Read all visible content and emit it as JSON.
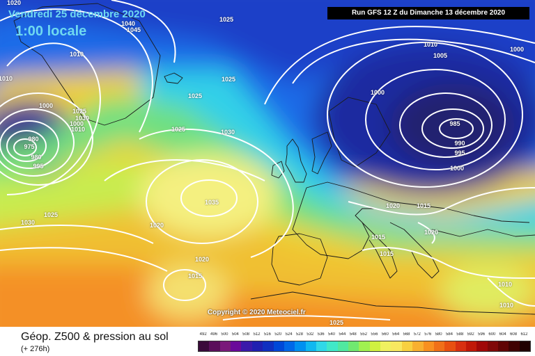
{
  "title": {
    "date": "Vendredi 25 décembre 2020",
    "time": "1:00 locale"
  },
  "run_info": "Run GFS 12 Z du Dimanche 13 décembre 2020",
  "copyright": "Copyright © 2020 Meteociel.fr",
  "footer": {
    "title": "Géop. Z500 & pression au sol",
    "subtitle": "(+ 276h)"
  },
  "scale": {
    "labels": [
      "492",
      "496",
      "500",
      "504",
      "508",
      "512",
      "516",
      "520",
      "524",
      "528",
      "532",
      "536",
      "540",
      "544",
      "548",
      "552",
      "556",
      "560",
      "564",
      "568",
      "572",
      "576",
      "580",
      "584",
      "588",
      "592",
      "596",
      "600",
      "604",
      "608",
      "612"
    ],
    "colors": [
      "#3a0a3a",
      "#5a0f5a",
      "#7a1a7a",
      "#6a0a9a",
      "#3a1aaa",
      "#2020b0",
      "#1030c0",
      "#0048d8",
      "#0068e8",
      "#0090f0",
      "#10b8f0",
      "#30d8e8",
      "#40e8c8",
      "#50e8a0",
      "#70e870",
      "#a0f050",
      "#d0f040",
      "#f0f060",
      "#f8e860",
      "#f8d040",
      "#f8b030",
      "#f89020",
      "#f07018",
      "#e85010",
      "#d83010",
      "#c01808",
      "#a00808",
      "#800808",
      "#600404",
      "#400202",
      "#200000"
    ]
  },
  "pressure_labels": [
    "1020",
    "1025",
    "1040",
    "1045",
    "1010",
    "1000",
    "1010",
    "1025",
    "1025",
    "1010",
    "1005",
    "1000",
    "1000",
    "1030",
    "1025",
    "1000",
    "1010",
    "980",
    "975",
    "980",
    "985",
    "990",
    "995",
    "995",
    "1000",
    "1035",
    "1030",
    "1025",
    "1020",
    "1030",
    "1020",
    "1015",
    "1020",
    "1015",
    "1015",
    "1020",
    "1025",
    "1025",
    "1015",
    "1010",
    "1010"
  ],
  "colors": {
    "contour": "#ffffff",
    "coast": "#1a1a1a"
  }
}
